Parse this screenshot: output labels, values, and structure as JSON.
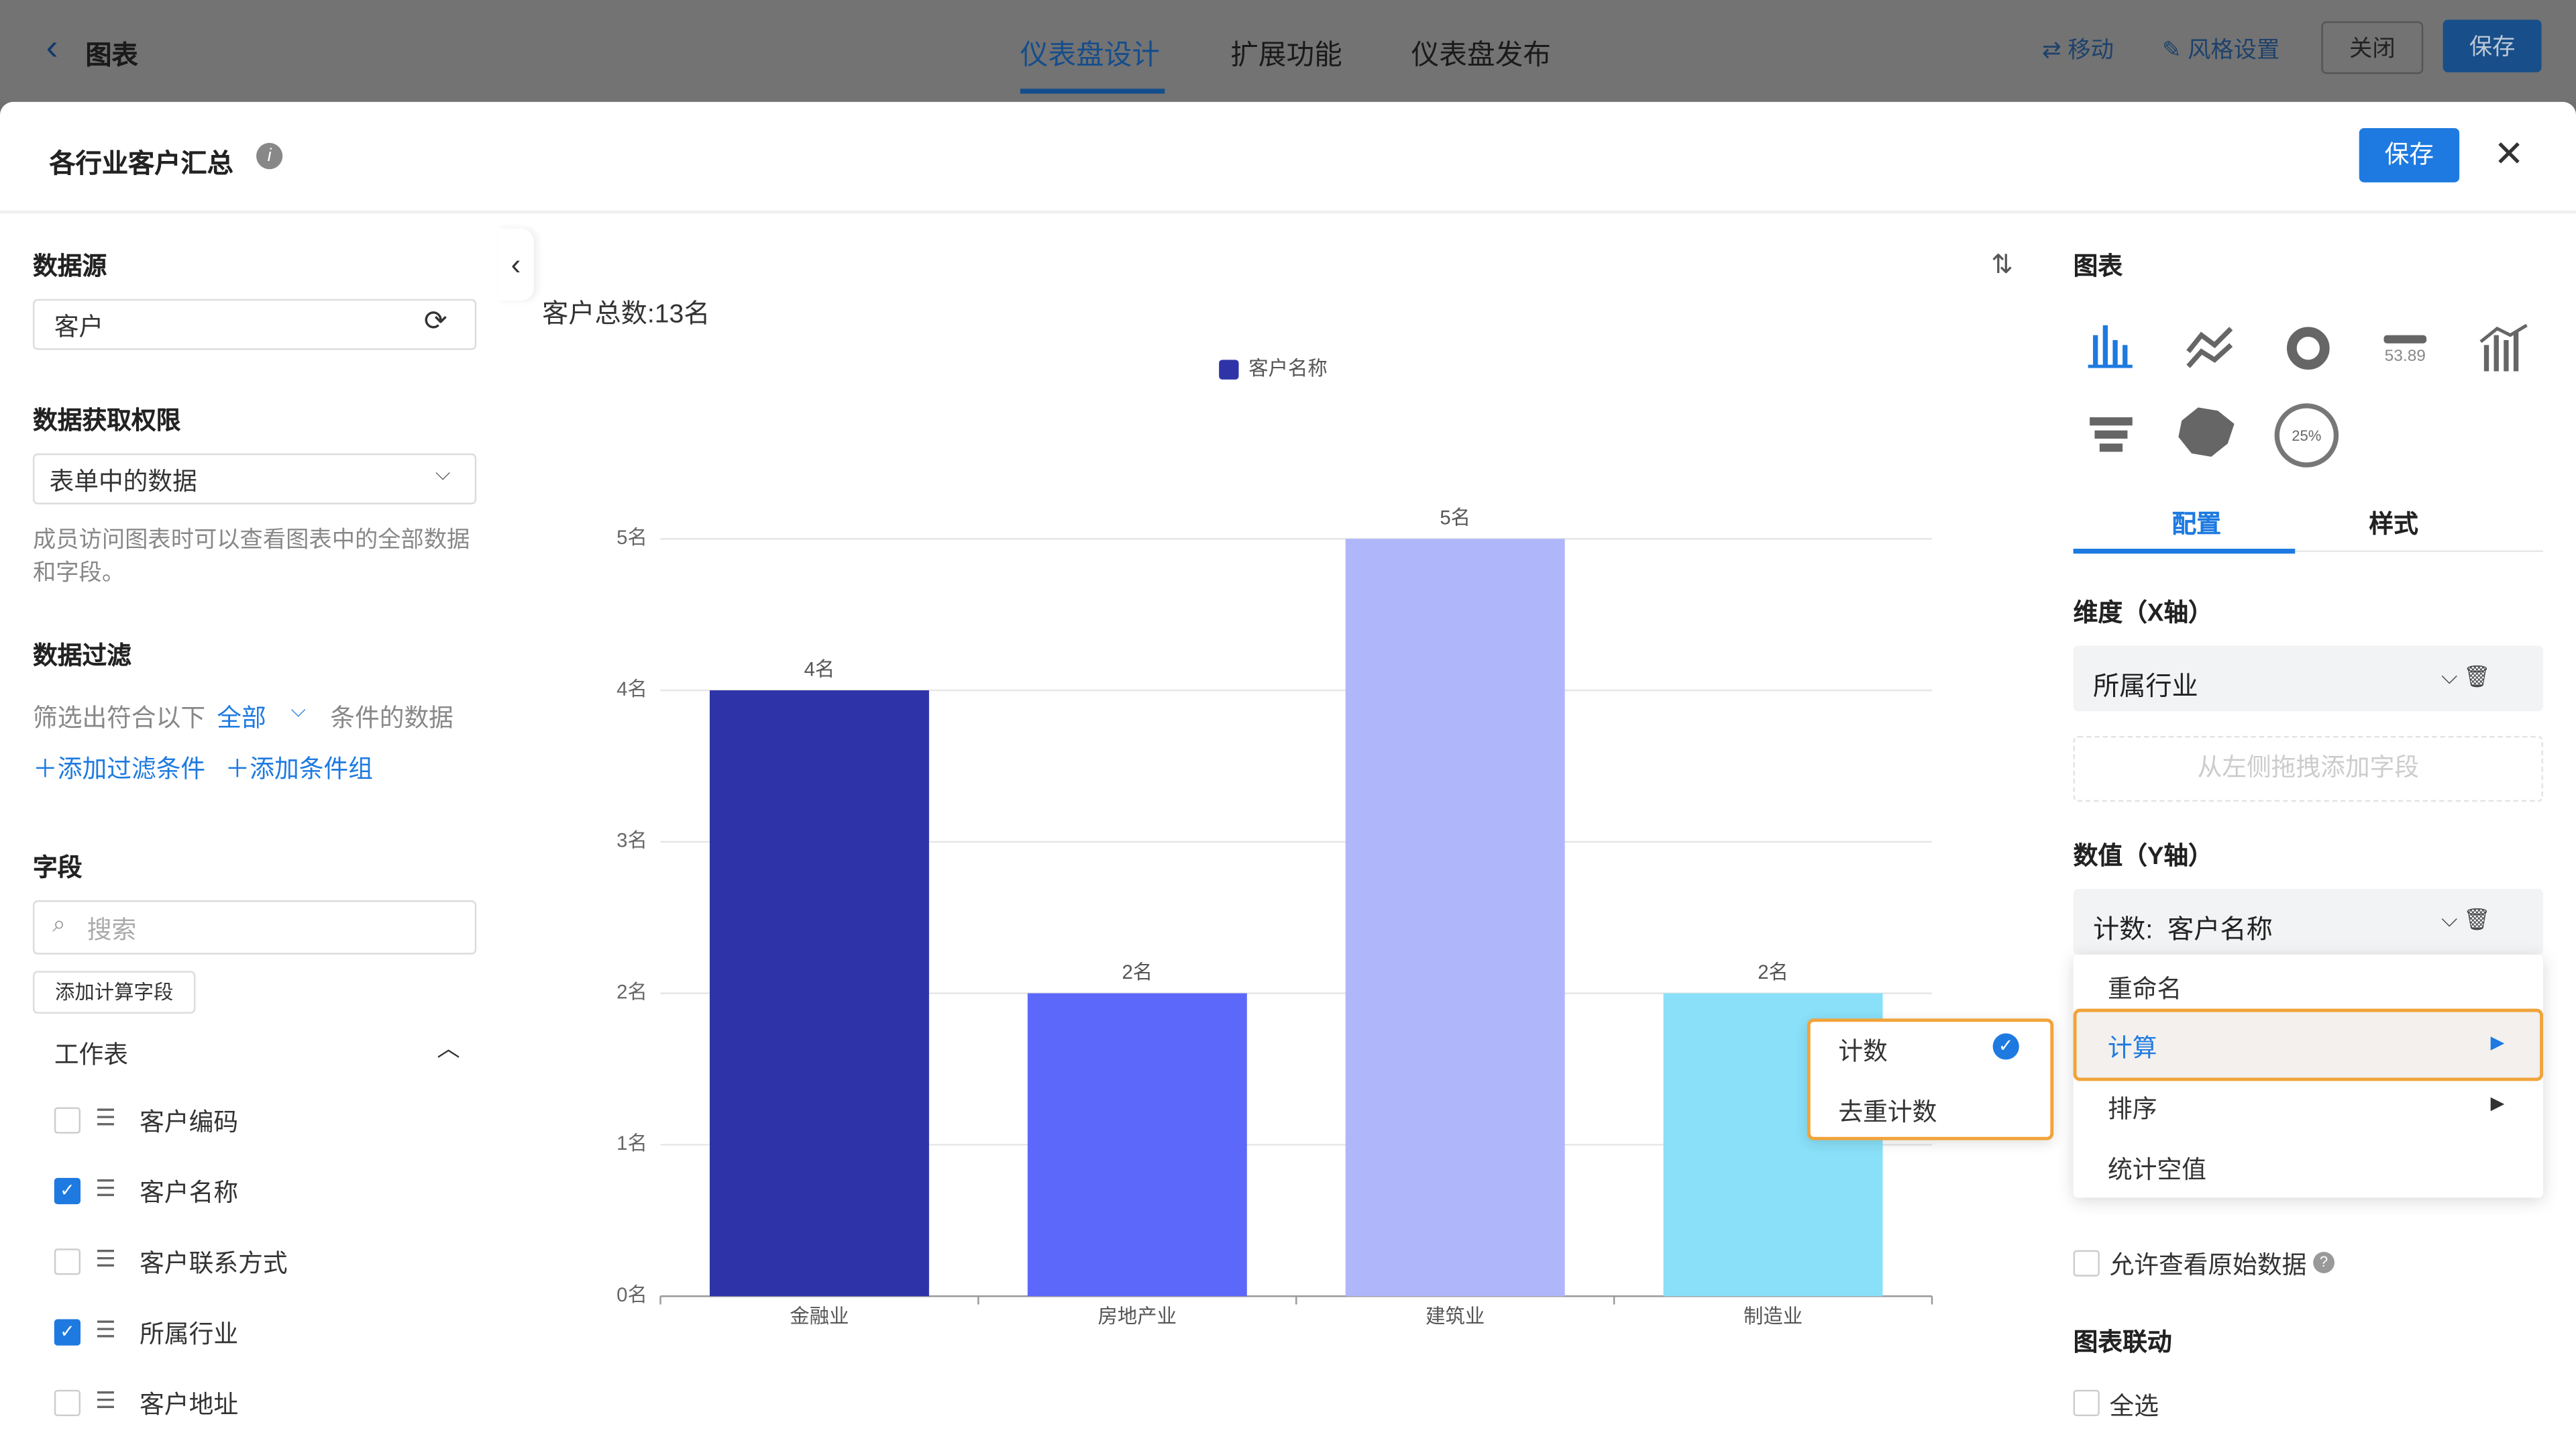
{
  "topbar": {
    "back": "图表",
    "tabs": [
      "仪表盘设计",
      "扩展功能",
      "仪表盘发布"
    ],
    "move": "移动",
    "style_settings": "风格设置",
    "close": "关闭",
    "save": "保存"
  },
  "dialog": {
    "title": "各行业客户汇总",
    "save": "保存"
  },
  "left": {
    "source_label": "数据源",
    "source": "客户",
    "permission_label": "数据获取权限",
    "permission": "表单中的数据",
    "permission_hint": "成员访问图表时可以查看图表中的全部数据和字段。",
    "filter_label": "数据过滤",
    "filter_prefix": "筛选出符合以下",
    "filter_mode": "全部",
    "filter_suffix": "条件的数据",
    "add_filter": "添加过滤条件",
    "add_group": "添加条件组",
    "fields_label": "字段",
    "search": "搜索",
    "add_calc": "添加计算字段",
    "sheet": "工作表",
    "fields": [
      {
        "label": "客户编码",
        "checked": false
      },
      {
        "label": "客户名称",
        "checked": true
      },
      {
        "label": "客户联系方式",
        "checked": false
      },
      {
        "label": "所属行业",
        "checked": true
      },
      {
        "label": "客户地址",
        "checked": false
      }
    ]
  },
  "chart_data": {
    "type": "bar",
    "title": "客户总数:13名",
    "categories": [
      "金融业",
      "房地产业",
      "建筑业",
      "制造业"
    ],
    "series": [
      {
        "name": "客户名称",
        "color": "#2e34a7",
        "colors": [
          "#2e34a7",
          "#5c68f9",
          "#b0b6fa",
          "#89e0f8"
        ],
        "values": [
          4,
          2,
          5,
          2
        ],
        "value_labels": [
          "4名",
          "2名",
          "5名",
          "2名"
        ]
      }
    ],
    "ylim": [
      0,
      5
    ],
    "yticks": [
      {
        "value": 0,
        "label": "0名"
      },
      {
        "value": 1,
        "label": "1名"
      },
      {
        "value": 2,
        "label": "2名"
      },
      {
        "value": 3,
        "label": "3名"
      },
      {
        "value": 4,
        "label": "4名"
      },
      {
        "value": 5,
        "label": "5名"
      }
    ],
    "grid": true,
    "legend": "top"
  },
  "submenu": [
    "计数",
    "去重计数"
  ],
  "right": {
    "chart_label": "图表",
    "icon_number": "53.89",
    "icon_percent": "25%",
    "tabs": [
      "配置",
      "样式"
    ],
    "x_label": "维度（X轴）",
    "x_field": "所属行业",
    "drop_hint": "从左侧拖拽添加字段",
    "y_label": "数值（Y轴）",
    "y_agg": "计数:",
    "y_field": "客户名称",
    "menu": [
      "重命名",
      "计算",
      "排序",
      "统计空值"
    ],
    "raw_data": "允许查看原始数据",
    "linkage": "图表联动",
    "select_all": "全选"
  }
}
